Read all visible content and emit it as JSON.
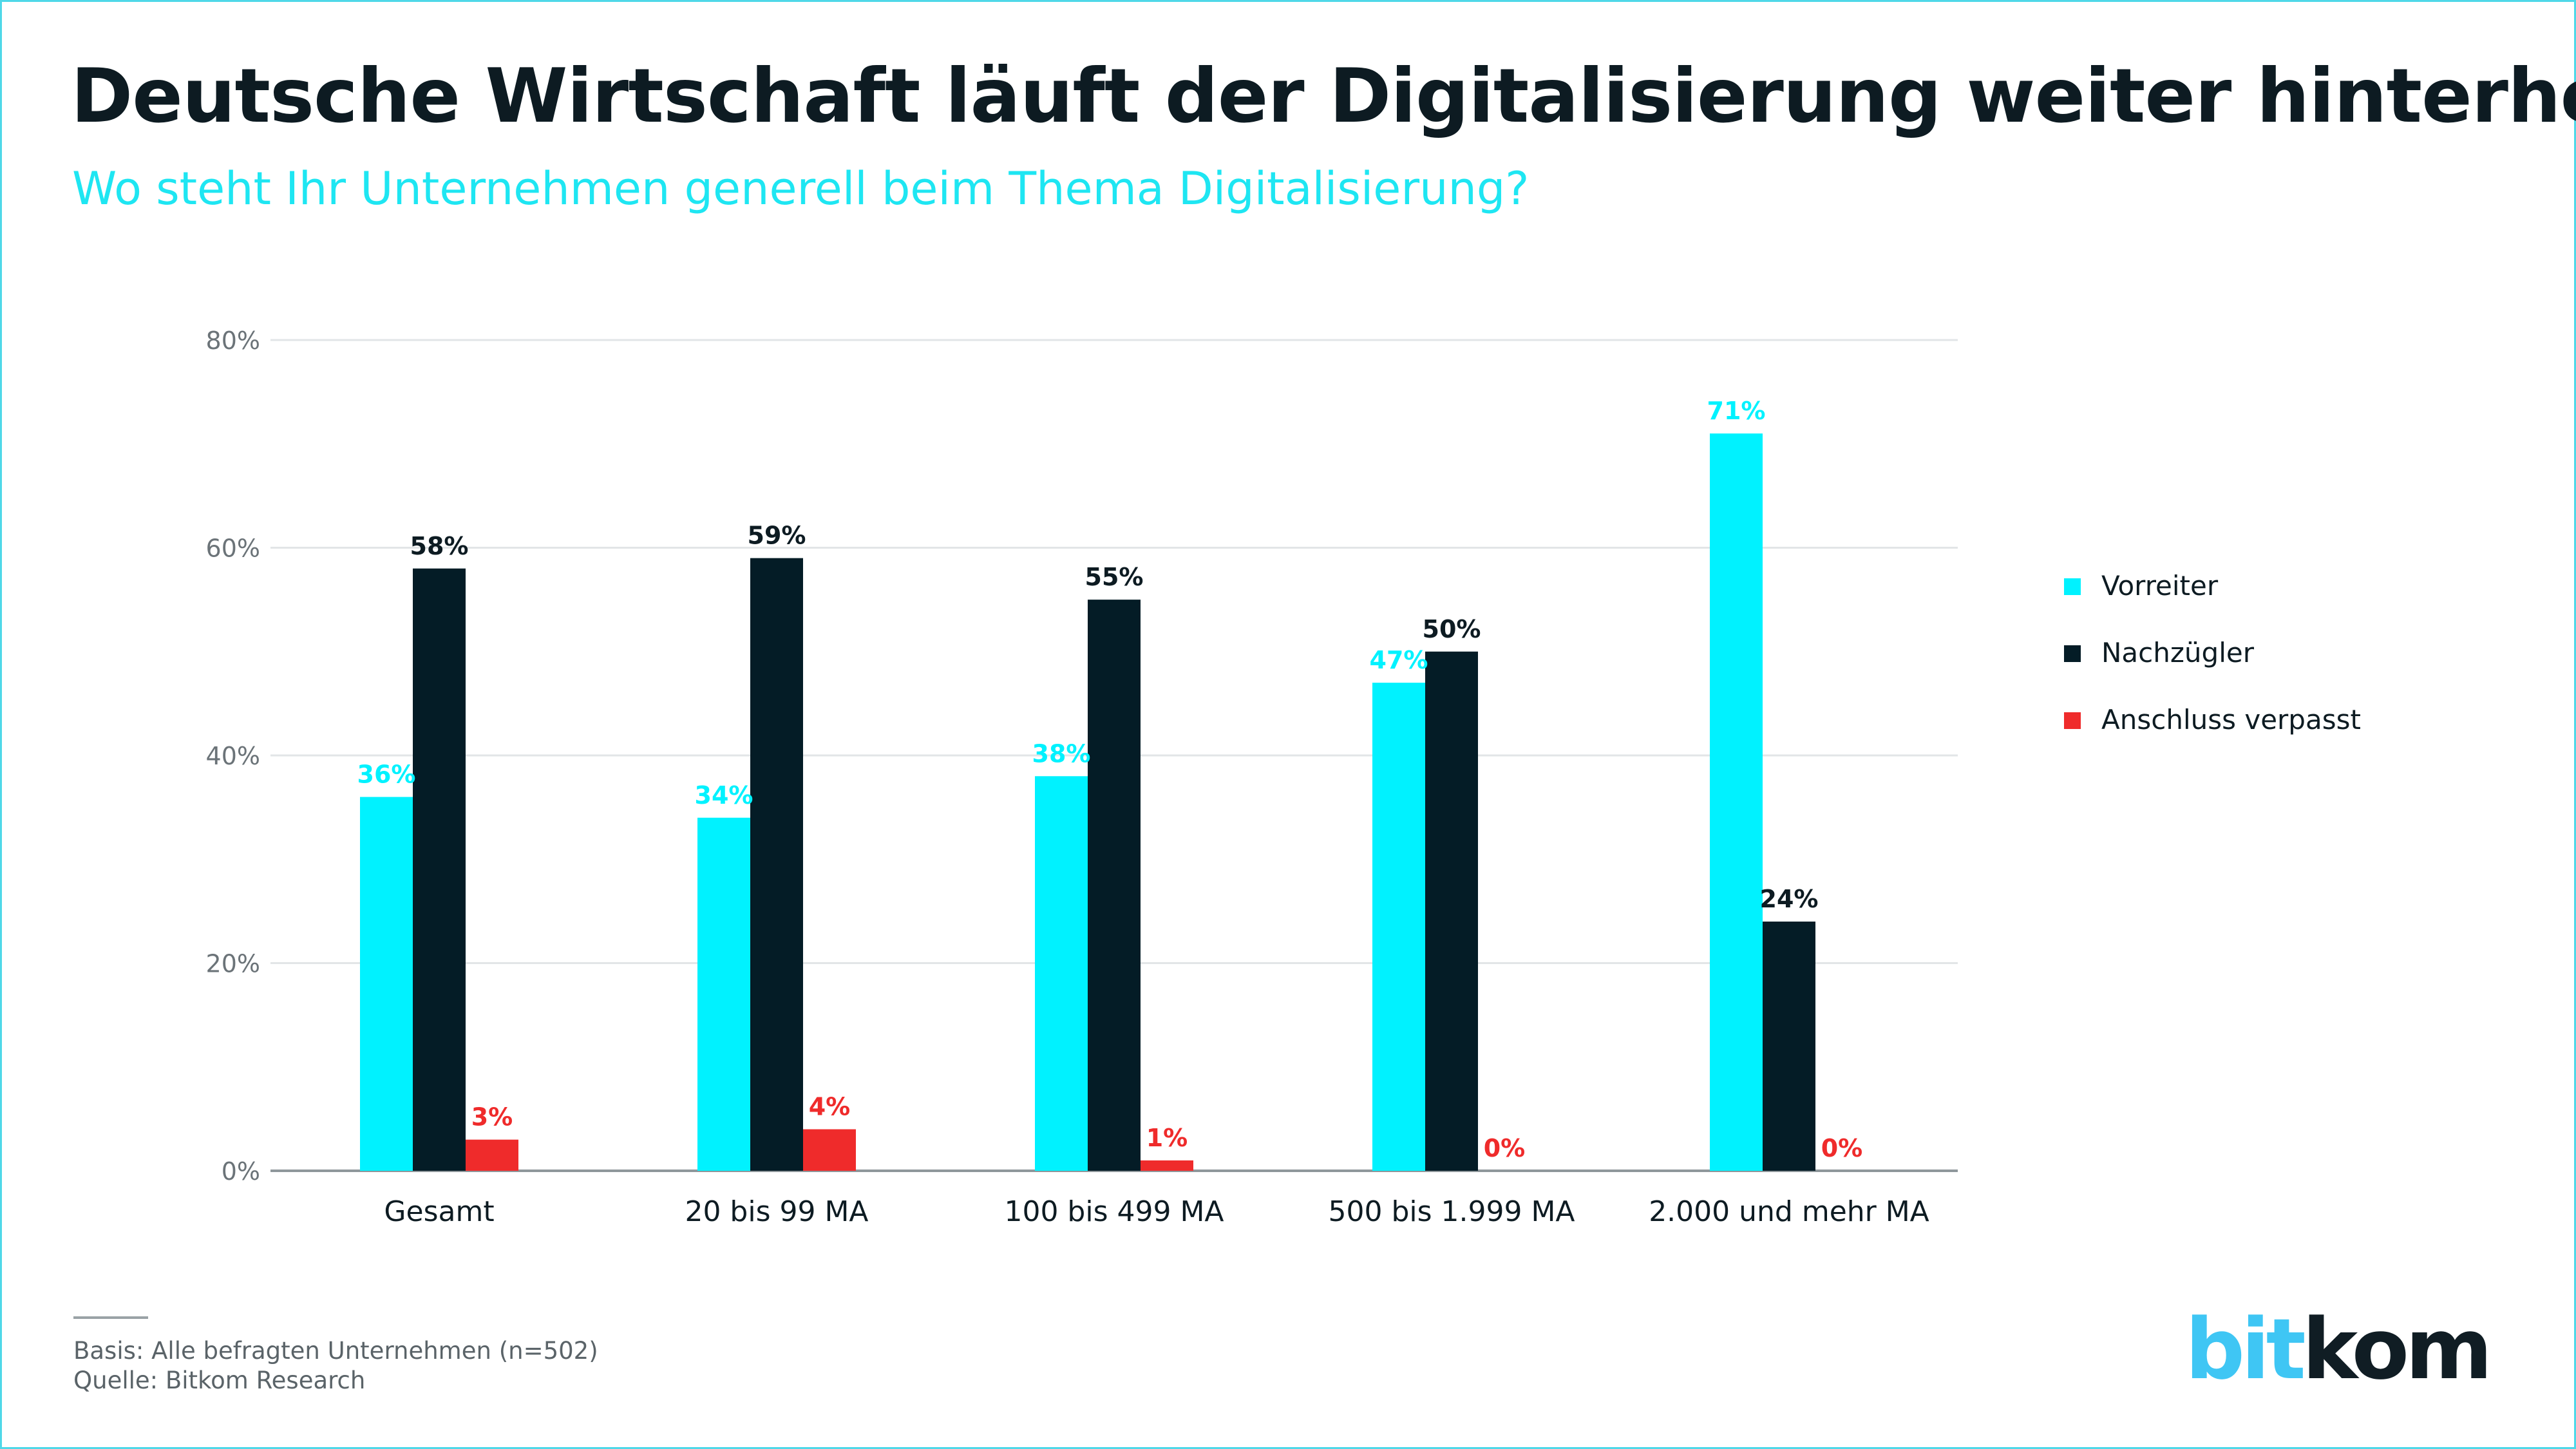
{
  "title": "Deutsche Wirtschaft läuft der Digitalisierung weiter hinterher",
  "subtitle": "Wo steht Ihr Unternehmen generell beim Thema Digitalisierung?",
  "footer": {
    "basis": "Basis: Alle befragten Unternehmen (n=502)",
    "source": "Quelle: Bitkom Research"
  },
  "logo": {
    "part1": "bit",
    "part2": "kom"
  },
  "colors": {
    "accent": "#1ee6f2",
    "vorreiter": "#00f2ff",
    "nachzuegler": "#041c26",
    "anschluss": "#ef2b2b",
    "frame": "#4fd8e8"
  },
  "chart_data": {
    "type": "bar",
    "categories": [
      "Gesamt",
      "20 bis 99 MA",
      "100 bis 499 MA",
      "500 bis 1.999 MA",
      "2.000 und mehr MA"
    ],
    "series": [
      {
        "name": "Vorreiter",
        "values": [
          36,
          34,
          38,
          47,
          71
        ],
        "labels": [
          "36%",
          "34%",
          "38%",
          "47%",
          "71%"
        ]
      },
      {
        "name": "Nachzügler",
        "values": [
          58,
          59,
          55,
          50,
          24
        ],
        "labels": [
          "58%",
          "59%",
          "55%",
          "50%",
          "24%"
        ]
      },
      {
        "name": "Anschluss verpasst",
        "values": [
          3,
          4,
          1,
          0,
          0
        ],
        "labels": [
          "3%",
          "4%",
          "1%",
          "0%",
          "0%"
        ]
      }
    ],
    "ylim": [
      0,
      80
    ],
    "yticks": [
      0,
      20,
      40,
      60,
      80
    ],
    "ytick_labels": [
      "0%",
      "20%",
      "40%",
      "60%",
      "80%"
    ],
    "grid": true,
    "legend_position": "right"
  }
}
